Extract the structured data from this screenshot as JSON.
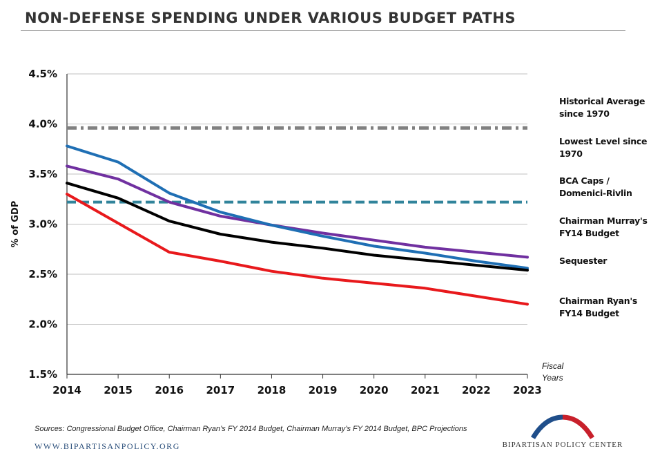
{
  "header": {
    "title": "NON-DEFENSE SPENDING UNDER VARIOUS BUDGET PATHS"
  },
  "chart_data": {
    "type": "line",
    "ylabel": "% of GDP",
    "xlabel": "Fiscal Years",
    "ylim": [
      1.5,
      4.5
    ],
    "yticks": [
      "1.5%",
      "2.0%",
      "2.5%",
      "3.0%",
      "3.5%",
      "4.0%",
      "4.5%"
    ],
    "ytick_values": [
      1.5,
      2.0,
      2.5,
      3.0,
      3.5,
      4.0,
      4.5
    ],
    "x": [
      "2014",
      "2015",
      "2016",
      "2017",
      "2018",
      "2019",
      "2020",
      "2021",
      "2022",
      "2023"
    ],
    "grid": "horizontal",
    "legend_position": "right",
    "series": [
      {
        "name": "Historical Average since 1970",
        "color": "#808080",
        "style": "dash-dot",
        "values": [
          3.96,
          3.96,
          3.96,
          3.96,
          3.96,
          3.96,
          3.96,
          3.96,
          3.96,
          3.96
        ]
      },
      {
        "name": "Lowest Level since 1970",
        "color": "#31849b",
        "style": "dashed",
        "values": [
          3.22,
          3.22,
          3.22,
          3.22,
          3.22,
          3.22,
          3.22,
          3.22,
          3.22,
          3.22
        ]
      },
      {
        "name": "BCA Caps / Domenici-Rivlin",
        "color": "#7030a0",
        "style": "solid",
        "values": [
          3.58,
          3.45,
          3.22,
          3.08,
          2.99,
          2.91,
          2.84,
          2.77,
          2.72,
          2.67
        ]
      },
      {
        "name": "Chairman Murray's FY14 Budget",
        "color": "#1f6fb4",
        "style": "solid",
        "values": [
          3.78,
          3.62,
          3.31,
          3.12,
          2.99,
          2.88,
          2.78,
          2.71,
          2.63,
          2.56
        ]
      },
      {
        "name": "Sequester",
        "color": "#000000",
        "style": "solid",
        "values": [
          3.41,
          3.26,
          3.03,
          2.9,
          2.82,
          2.76,
          2.69,
          2.64,
          2.59,
          2.54
        ]
      },
      {
        "name": "Chairman Ryan's FY14 Budget",
        "color": "#e8191c",
        "style": "solid",
        "values": [
          3.3,
          3.01,
          2.72,
          2.63,
          2.53,
          2.46,
          2.41,
          2.36,
          2.28,
          2.2
        ]
      }
    ]
  },
  "legend": {
    "items": [
      {
        "line1": "Historical Average",
        "line2": "since 1970"
      },
      {
        "line1": "Lowest Level since",
        "line2": "1970"
      },
      {
        "line1": "BCA Caps /",
        "line2": "Domenici-Rivlin"
      },
      {
        "line1": "Chairman Murray's",
        "line2": "FY14 Budget"
      },
      {
        "line1": "Sequester",
        "line2": ""
      },
      {
        "line1": "Chairman Ryan's",
        "line2": "FY14 Budget"
      }
    ]
  },
  "axis": {
    "fiscal_line1": "Fiscal",
    "fiscal_line2": "Years"
  },
  "footer": {
    "sources": "Sources: Congressional  Budget Office, Chairman  Ryan’s FY 2014 Budget, Chairman Murray’s FY 2014 Budget, BPC Projections",
    "website": "WWW.BIPARTISANPOLICY.ORG",
    "logo_text": "BIPARTISAN POLICY CENTER"
  }
}
